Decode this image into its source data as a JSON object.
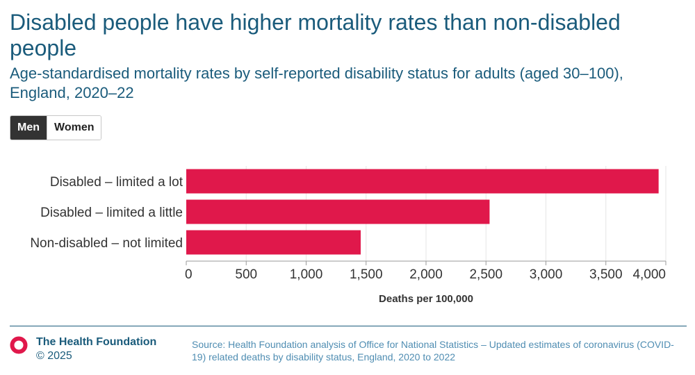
{
  "header": {
    "title": "Disabled people have higher mortality rates than non-disabled people",
    "subtitle": "Age-standardised mortality rates by self-reported disability status for adults (aged 30–100), England, 2020–22"
  },
  "toggle": {
    "options": [
      "Men",
      "Women"
    ],
    "selected": "Men"
  },
  "colors": {
    "bar": "#e0184b",
    "title": "#1a5b7b",
    "source": "#4f8db2"
  },
  "chart_data": {
    "type": "bar",
    "orientation": "horizontal",
    "categories": [
      "Disabled – limited a lot",
      "Disabled – limited a little",
      "Non-disabled – not limited"
    ],
    "values": [
      3940,
      2530,
      1455
    ],
    "xlabel": "Deaths per 100,000",
    "ylabel": "",
    "xlim": [
      0,
      4000
    ],
    "ticks": [
      0,
      500,
      1000,
      1500,
      2000,
      2500,
      3000,
      3500,
      4000
    ],
    "tick_labels": [
      "0",
      "500",
      "1,000",
      "1,500",
      "2,000",
      "2,500",
      "3,000",
      "3,500",
      "4,000"
    ],
    "grid": true,
    "series_name": "Men"
  },
  "footer": {
    "organisation": "The Health Foundation",
    "copyright": "© 2025",
    "source": "Source: Health Foundation analysis of Office for National Statistics – Updated estimates of coronavirus (COVID-19) related deaths by disability status, England, 2020 to 2022"
  }
}
